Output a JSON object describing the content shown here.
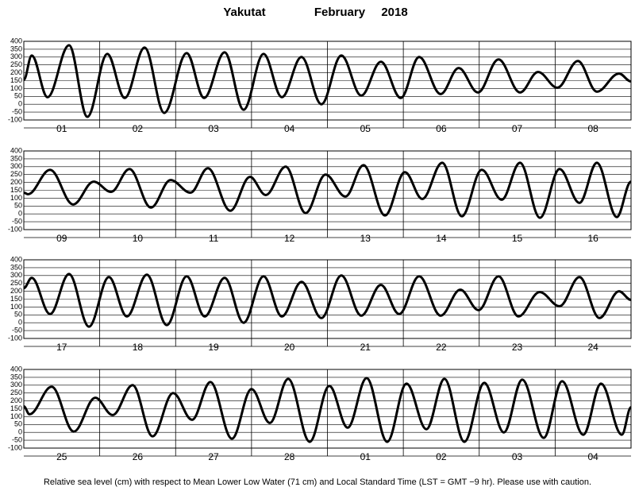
{
  "header": {
    "station": "Yakutat",
    "month": "February",
    "year": "2018"
  },
  "footer": "Relative sea level (cm) with respect to Mean Lower Low Water (71 cm) and Local Standard Time (LST = GMT −9 hr). Please use with caution.",
  "chart_data": [
    {
      "type": "line",
      "categories": [
        "01",
        "02",
        "03",
        "04",
        "05",
        "06",
        "07",
        "08"
      ],
      "xlim": [
        0,
        192
      ],
      "ylim": [
        -100,
        400
      ],
      "yticks": [
        -100,
        -50,
        0,
        50,
        100,
        150,
        200,
        250,
        300,
        350,
        400
      ],
      "grid": true,
      "color": "#000000",
      "x": [
        0,
        2.5,
        7.5,
        14.3,
        20.1,
        26.4,
        31.9,
        38.2,
        44.4,
        51.5,
        57,
        63.5,
        69.5,
        75.8,
        81.6,
        87.8,
        94.1,
        100.4,
        106.7,
        112.9,
        119.2,
        125,
        131.8,
        137.5,
        143.6,
        150.1,
        156.9,
        162.6,
        168.7,
        175.2,
        181.2,
        188.2,
        192
      ],
      "values": [
        155,
        310,
        45,
        375,
        -80,
        320,
        40,
        360,
        -55,
        325,
        40,
        330,
        -35,
        320,
        45,
        300,
        0,
        310,
        55,
        270,
        40,
        300,
        65,
        230,
        75,
        285,
        75,
        205,
        105,
        275,
        80,
        195,
        145
      ]
    },
    {
      "type": "line",
      "categories": [
        "09",
        "10",
        "11",
        "12",
        "13",
        "14",
        "15",
        "16"
      ],
      "xlim": [
        0,
        192
      ],
      "ylim": [
        -100,
        400
      ],
      "yticks": [
        -100,
        -50,
        0,
        50,
        100,
        150,
        200,
        250,
        300,
        350,
        400
      ],
      "grid": true,
      "color": "#000000",
      "x": [
        0,
        1.3,
        8.3,
        15.6,
        22.1,
        27.6,
        33.4,
        40.2,
        46.4,
        52.7,
        58.2,
        65.3,
        71.5,
        76.5,
        82.8,
        89.1,
        95.4,
        101.7,
        107.4,
        114.2,
        120.5,
        126,
        132.3,
        138.5,
        144.8,
        151.1,
        156.9,
        163.2,
        169.4,
        175.7,
        181.2,
        187.5,
        192
      ],
      "values": [
        135,
        125,
        280,
        60,
        205,
        140,
        285,
        40,
        215,
        135,
        290,
        20,
        235,
        120,
        300,
        5,
        250,
        110,
        310,
        -10,
        265,
        95,
        325,
        -15,
        280,
        90,
        325,
        -25,
        285,
        70,
        325,
        -20,
        205
      ]
    },
    {
      "type": "line",
      "categories": [
        "17",
        "18",
        "19",
        "20",
        "21",
        "22",
        "23",
        "24"
      ],
      "xlim": [
        0,
        192
      ],
      "ylim": [
        -100,
        400
      ],
      "yticks": [
        -100,
        -50,
        0,
        50,
        100,
        150,
        200,
        250,
        300,
        350,
        400
      ],
      "grid": true,
      "color": "#000000",
      "x": [
        0,
        2.5,
        8.3,
        14.3,
        20.6,
        26.9,
        32.6,
        38.9,
        45.2,
        51.5,
        57.2,
        63.5,
        69.5,
        75.8,
        81.6,
        87.8,
        94.1,
        100.4,
        106.7,
        112.9,
        118.7,
        125,
        131.8,
        138,
        143.8,
        150.1,
        156.4,
        163.1,
        169.4,
        175.7,
        182,
        188.2,
        192
      ],
      "values": [
        220,
        285,
        55,
        310,
        -25,
        290,
        40,
        305,
        -15,
        295,
        40,
        285,
        0,
        295,
        40,
        260,
        30,
        300,
        45,
        240,
        55,
        295,
        45,
        210,
        80,
        295,
        40,
        195,
        105,
        290,
        30,
        200,
        145
      ]
    },
    {
      "type": "line",
      "categories": [
        "25",
        "26",
        "27",
        "28",
        "01",
        "02",
        "03",
        "04"
      ],
      "xlim": [
        0,
        192
      ],
      "ylim": [
        -100,
        400
      ],
      "yticks": [
        -100,
        -50,
        0,
        50,
        100,
        150,
        200,
        250,
        300,
        350,
        400
      ],
      "grid": true,
      "color": "#000000",
      "x": [
        0,
        1.8,
        8.8,
        15.8,
        22.6,
        28.1,
        34.4,
        40.7,
        47.2,
        53.2,
        59,
        65.8,
        72,
        77.8,
        83.6,
        90.4,
        96.6,
        102.4,
        108.4,
        114.9,
        121,
        127.3,
        133,
        139.3,
        145.6,
        151.8,
        157.6,
        164.4,
        170.2,
        176.9,
        182.5,
        189.1,
        192
      ],
      "values": [
        165,
        115,
        290,
        5,
        220,
        110,
        300,
        -25,
        250,
        80,
        320,
        -40,
        275,
        60,
        340,
        -60,
        295,
        30,
        345,
        -60,
        310,
        20,
        340,
        -60,
        315,
        0,
        335,
        -35,
        325,
        -15,
        310,
        -15,
        160
      ]
    }
  ]
}
